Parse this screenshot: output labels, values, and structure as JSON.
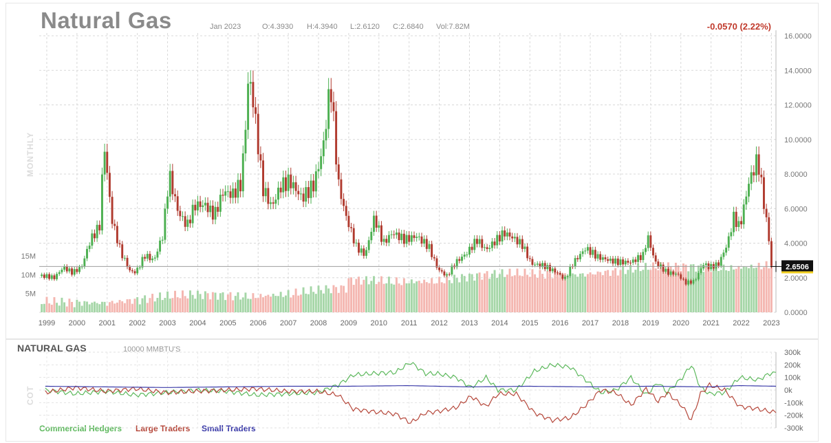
{
  "header": {
    "title": "Natural Gas",
    "period": "Jan 2023",
    "open": "O:4.3930",
    "high": "H:4.3940",
    "low": "L:2.6120",
    "close": "C:2.6840",
    "volume": "Vol:7.82M",
    "change": "-0.0570 (2.22%)",
    "timeframe_label": "MONTHLY",
    "current_price_label": "2.6506"
  },
  "cot": {
    "title": "NATURAL GAS",
    "units": "10000 MMBTU'S",
    "side_label": "COT",
    "legend": [
      {
        "name": "Commercial Hedgers",
        "color": "#5cb85c"
      },
      {
        "name": "Large Traders",
        "color": "#b5473a"
      },
      {
        "name": "Small Traders",
        "color": "#3a3aa8"
      }
    ],
    "yticks": [
      "300k",
      "200k",
      "100k",
      "0k",
      "-100k",
      "-200k",
      "-300k"
    ]
  },
  "colors": {
    "up": "#4caf50",
    "down": "#b03a2e",
    "vol_up": "#a5d6a7",
    "vol_down": "#f4b6b0",
    "grid": "#d8d8d8",
    "price_line": "#9e9e9e"
  },
  "chart_data": [
    {
      "type": "candlestick",
      "title": "Natural Gas",
      "x_ticks": [
        "1999",
        "2000",
        "2001",
        "2002",
        "2003",
        "2004",
        "2005",
        "2006",
        "2007",
        "2008",
        "2009",
        "2010",
        "2011",
        "2012",
        "2013",
        "2014",
        "2015",
        "2016",
        "2017",
        "2018",
        "2019",
        "2020",
        "2021",
        "2022",
        "2023"
      ],
      "y_ticks": [
        "16.0000",
        "14.0000",
        "12.0000",
        "10.0000",
        "8.0000",
        "6.0000",
        "4.0000",
        "2.0000",
        "0.0000"
      ],
      "ylim": [
        0,
        16
      ],
      "volume_ticks": [
        "15M",
        "10M",
        "5M"
      ],
      "volume_max": 15,
      "current_price": 2.6506,
      "monthly_close": [
        {
          "t": 1999.0,
          "v": 2.1
        },
        {
          "t": 1999.3,
          "v": 2.0
        },
        {
          "t": 1999.6,
          "v": 2.6
        },
        {
          "t": 1999.9,
          "v": 2.3
        },
        {
          "t": 2000.2,
          "v": 2.6
        },
        {
          "t": 2000.5,
          "v": 4.2
        },
        {
          "t": 2000.8,
          "v": 5.0
        },
        {
          "t": 2000.95,
          "v": 9.8
        },
        {
          "t": 2001.2,
          "v": 5.4
        },
        {
          "t": 2001.5,
          "v": 3.5
        },
        {
          "t": 2001.8,
          "v": 2.4
        },
        {
          "t": 2002.0,
          "v": 2.3
        },
        {
          "t": 2002.3,
          "v": 3.3
        },
        {
          "t": 2002.6,
          "v": 3.0
        },
        {
          "t": 2002.9,
          "v": 4.5
        },
        {
          "t": 2003.1,
          "v": 8.0
        },
        {
          "t": 2003.4,
          "v": 5.8
        },
        {
          "t": 2003.7,
          "v": 5.0
        },
        {
          "t": 2003.95,
          "v": 6.2
        },
        {
          "t": 2004.3,
          "v": 6.2
        },
        {
          "t": 2004.6,
          "v": 5.6
        },
        {
          "t": 2004.9,
          "v": 7.0
        },
        {
          "t": 2005.2,
          "v": 6.8
        },
        {
          "t": 2005.5,
          "v": 7.5
        },
        {
          "t": 2005.75,
          "v": 13.9
        },
        {
          "t": 2005.95,
          "v": 11.3
        },
        {
          "t": 2006.2,
          "v": 7.2
        },
        {
          "t": 2006.5,
          "v": 6.1
        },
        {
          "t": 2006.8,
          "v": 7.3
        },
        {
          "t": 2007.1,
          "v": 7.6
        },
        {
          "t": 2007.5,
          "v": 6.6
        },
        {
          "t": 2007.9,
          "v": 7.4
        },
        {
          "t": 2008.2,
          "v": 9.5
        },
        {
          "t": 2008.45,
          "v": 13.3
        },
        {
          "t": 2008.7,
          "v": 7.5
        },
        {
          "t": 2008.95,
          "v": 5.6
        },
        {
          "t": 2009.3,
          "v": 3.8
        },
        {
          "t": 2009.6,
          "v": 3.3
        },
        {
          "t": 2009.9,
          "v": 5.5
        },
        {
          "t": 2010.2,
          "v": 4.0
        },
        {
          "t": 2010.5,
          "v": 4.6
        },
        {
          "t": 2010.9,
          "v": 4.2
        },
        {
          "t": 2011.3,
          "v": 4.4
        },
        {
          "t": 2011.7,
          "v": 3.8
        },
        {
          "t": 2012.0,
          "v": 2.5
        },
        {
          "t": 2012.3,
          "v": 2.1
        },
        {
          "t": 2012.6,
          "v": 2.9
        },
        {
          "t": 2012.95,
          "v": 3.4
        },
        {
          "t": 2013.3,
          "v": 4.2
        },
        {
          "t": 2013.6,
          "v": 3.6
        },
        {
          "t": 2013.95,
          "v": 4.2
        },
        {
          "t": 2014.2,
          "v": 4.6
        },
        {
          "t": 2014.5,
          "v": 4.3
        },
        {
          "t": 2014.8,
          "v": 3.9
        },
        {
          "t": 2015.1,
          "v": 2.8
        },
        {
          "t": 2015.5,
          "v": 2.7
        },
        {
          "t": 2015.95,
          "v": 2.3
        },
        {
          "t": 2016.2,
          "v": 1.9
        },
        {
          "t": 2016.5,
          "v": 2.9
        },
        {
          "t": 2016.9,
          "v": 3.7
        },
        {
          "t": 2017.3,
          "v": 3.2
        },
        {
          "t": 2017.7,
          "v": 3.0
        },
        {
          "t": 2018.0,
          "v": 2.9
        },
        {
          "t": 2018.4,
          "v": 2.9
        },
        {
          "t": 2018.8,
          "v": 3.3
        },
        {
          "t": 2018.95,
          "v": 4.4
        },
        {
          "t": 2019.2,
          "v": 2.9
        },
        {
          "t": 2019.6,
          "v": 2.3
        },
        {
          "t": 2019.95,
          "v": 2.2
        },
        {
          "t": 2020.2,
          "v": 1.7
        },
        {
          "t": 2020.5,
          "v": 1.8
        },
        {
          "t": 2020.8,
          "v": 2.8
        },
        {
          "t": 2021.0,
          "v": 2.6
        },
        {
          "t": 2021.3,
          "v": 2.8
        },
        {
          "t": 2021.6,
          "v": 4.0
        },
        {
          "t": 2021.8,
          "v": 5.5
        },
        {
          "t": 2022.0,
          "v": 4.9
        },
        {
          "t": 2022.3,
          "v": 7.5
        },
        {
          "t": 2022.6,
          "v": 8.9
        },
        {
          "t": 2022.8,
          "v": 6.3
        },
        {
          "t": 2022.95,
          "v": 4.5
        },
        {
          "t": 2023.05,
          "v": 2.68
        }
      ]
    },
    {
      "type": "line",
      "title": "NATURAL GAS",
      "ylabel": "COT",
      "ylim": [
        -300,
        300
      ],
      "series": [
        {
          "name": "Commercial Hedgers",
          "color": "#5cb85c",
          "points": [
            {
              "t": 1999.0,
              "v": 0
            },
            {
              "t": 2000.0,
              "v": -30
            },
            {
              "t": 2001.0,
              "v": -10
            },
            {
              "t": 2002.0,
              "v": -40
            },
            {
              "t": 2003.0,
              "v": -20
            },
            {
              "t": 2004.0,
              "v": 0
            },
            {
              "t": 2005.0,
              "v": -10
            },
            {
              "t": 2006.0,
              "v": -40
            },
            {
              "t": 2007.0,
              "v": -30
            },
            {
              "t": 2008.0,
              "v": -20
            },
            {
              "t": 2008.7,
              "v": 40
            },
            {
              "t": 2009.2,
              "v": 120
            },
            {
              "t": 2009.8,
              "v": 130
            },
            {
              "t": 2010.6,
              "v": 140
            },
            {
              "t": 2011.1,
              "v": 220
            },
            {
              "t": 2011.6,
              "v": 130
            },
            {
              "t": 2012.0,
              "v": 130
            },
            {
              "t": 2012.6,
              "v": 100
            },
            {
              "t": 2013.1,
              "v": 20
            },
            {
              "t": 2013.6,
              "v": 100
            },
            {
              "t": 2014.0,
              "v": 0
            },
            {
              "t": 2014.6,
              "v": 0
            },
            {
              "t": 2015.2,
              "v": 150
            },
            {
              "t": 2015.8,
              "v": 200
            },
            {
              "t": 2016.4,
              "v": 180
            },
            {
              "t": 2016.9,
              "v": 80
            },
            {
              "t": 2017.4,
              "v": -20
            },
            {
              "t": 2017.9,
              "v": 0
            },
            {
              "t": 2018.4,
              "v": 100
            },
            {
              "t": 2018.9,
              "v": -40
            },
            {
              "t": 2019.3,
              "v": 60
            },
            {
              "t": 2019.6,
              "v": -20
            },
            {
              "t": 2020.1,
              "v": 100
            },
            {
              "t": 2020.4,
              "v": 200
            },
            {
              "t": 2020.7,
              "v": 20
            },
            {
              "t": 2021.0,
              "v": -30
            },
            {
              "t": 2021.5,
              "v": -20
            },
            {
              "t": 2022.0,
              "v": 100
            },
            {
              "t": 2022.6,
              "v": 80
            },
            {
              "t": 2023.0,
              "v": 130
            },
            {
              "t": 2023.2,
              "v": 140
            }
          ]
        },
        {
          "name": "Large Traders",
          "color": "#b5473a",
          "points": [
            {
              "t": 1999.0,
              "v": -20
            },
            {
              "t": 2000.0,
              "v": 20
            },
            {
              "t": 2001.0,
              "v": -10
            },
            {
              "t": 2002.0,
              "v": 10
            },
            {
              "t": 2003.0,
              "v": -20
            },
            {
              "t": 2004.0,
              "v": -10
            },
            {
              "t": 2005.0,
              "v": 0
            },
            {
              "t": 2006.0,
              "v": 10
            },
            {
              "t": 2007.0,
              "v": -10
            },
            {
              "t": 2008.0,
              "v": -10
            },
            {
              "t": 2008.7,
              "v": -40
            },
            {
              "t": 2009.2,
              "v": -150
            },
            {
              "t": 2009.8,
              "v": -170
            },
            {
              "t": 2010.6,
              "v": -190
            },
            {
              "t": 2011.1,
              "v": -260
            },
            {
              "t": 2011.6,
              "v": -180
            },
            {
              "t": 2012.0,
              "v": -170
            },
            {
              "t": 2012.6,
              "v": -140
            },
            {
              "t": 2013.1,
              "v": -50
            },
            {
              "t": 2013.6,
              "v": -130
            },
            {
              "t": 2014.0,
              "v": -30
            },
            {
              "t": 2014.6,
              "v": -30
            },
            {
              "t": 2015.2,
              "v": -180
            },
            {
              "t": 2015.8,
              "v": -240
            },
            {
              "t": 2016.4,
              "v": -220
            },
            {
              "t": 2016.9,
              "v": -120
            },
            {
              "t": 2017.4,
              "v": 0
            },
            {
              "t": 2017.9,
              "v": -20
            },
            {
              "t": 2018.4,
              "v": -120
            },
            {
              "t": 2018.9,
              "v": 10
            },
            {
              "t": 2019.3,
              "v": -90
            },
            {
              "t": 2019.6,
              "v": -20
            },
            {
              "t": 2020.1,
              "v": -130
            },
            {
              "t": 2020.4,
              "v": -240
            },
            {
              "t": 2020.7,
              "v": -30
            },
            {
              "t": 2021.0,
              "v": 40
            },
            {
              "t": 2021.5,
              "v": 0
            },
            {
              "t": 2022.0,
              "v": -130
            },
            {
              "t": 2022.6,
              "v": -150
            },
            {
              "t": 2023.0,
              "v": -170
            },
            {
              "t": 2023.2,
              "v": -180
            }
          ]
        },
        {
          "name": "Small Traders",
          "color": "#3a3aa8",
          "points": [
            {
              "t": 1999.0,
              "v": 30
            },
            {
              "t": 2001.0,
              "v": 25
            },
            {
              "t": 2003.0,
              "v": 20
            },
            {
              "t": 2005.0,
              "v": 25
            },
            {
              "t": 2007.0,
              "v": 30
            },
            {
              "t": 2009.0,
              "v": 30
            },
            {
              "t": 2011.0,
              "v": 35
            },
            {
              "t": 2013.0,
              "v": 25
            },
            {
              "t": 2015.0,
              "v": 30
            },
            {
              "t": 2017.0,
              "v": 25
            },
            {
              "t": 2019.0,
              "v": 30
            },
            {
              "t": 2021.0,
              "v": 25
            },
            {
              "t": 2022.0,
              "v": 35
            },
            {
              "t": 2023.2,
              "v": 30
            }
          ]
        }
      ]
    }
  ]
}
